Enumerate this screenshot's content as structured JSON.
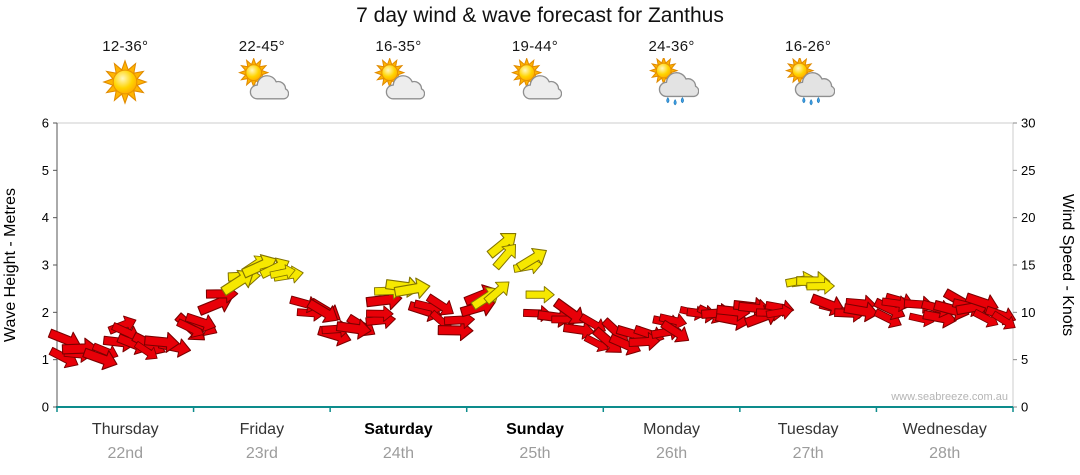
{
  "watermark": "www.seabreeze.com.au",
  "header": {
    "days": [
      {
        "temp": "12-36°",
        "icon": "sun"
      },
      {
        "temp": "22-45°",
        "icon": "sun-cloud"
      },
      {
        "temp": "16-35°",
        "icon": "sun-cloud"
      },
      {
        "temp": "19-44°",
        "icon": "sun-cloud"
      },
      {
        "temp": "24-36°",
        "icon": "sun-cloud-rain"
      },
      {
        "temp": "16-26°",
        "icon": "sun-cloud-rain"
      }
    ]
  },
  "chart_data": {
    "type": "scatter",
    "subtype": "wind-arrow-forecast",
    "title": "7 day wind & wave forecast for Zanthus",
    "ylabel_left": "Wave Height - Metres",
    "ylabel_right": "Wind Speed - Knots",
    "ylim_left": [
      0,
      6
    ],
    "ylim_right": [
      0,
      30
    ],
    "yticks_left": [
      0,
      1,
      2,
      3,
      4,
      5,
      6
    ],
    "yticks_right": [
      0,
      5,
      10,
      15,
      20,
      25,
      30
    ],
    "grid": false,
    "days": [
      {
        "name": "Thursday",
        "date": "22nd",
        "bold": false
      },
      {
        "name": "Friday",
        "date": "23rd",
        "bold": false
      },
      {
        "name": "Saturday",
        "date": "24th",
        "bold": true
      },
      {
        "name": "Sunday",
        "date": "25th",
        "bold": true
      },
      {
        "name": "Monday",
        "date": "26th",
        "bold": false
      },
      {
        "name": "Tuesday",
        "date": "27th",
        "bold": false
      },
      {
        "name": "Wednesday",
        "date": "28th",
        "bold": false
      }
    ],
    "arrow_style": {
      "moderate_fill": "#E80008",
      "moderate_stroke": "#7A0000",
      "strong_fill": "#F6E800",
      "strong_stroke": "#837400",
      "strong_threshold_knots": 12,
      "bottom_axis_color": "#0D8C8C"
    },
    "series": {
      "name": "Wind speed (knots) with direction arrows",
      "t_days": [
        0.06,
        0.19,
        0.31,
        0.44,
        0.56,
        0.69,
        0.81,
        0.94,
        1.06,
        1.19,
        1.31,
        1.44,
        1.56,
        1.69,
        1.81,
        1.94,
        2.06,
        2.19,
        2.31,
        2.44,
        2.56,
        2.69,
        2.81,
        2.94,
        3.06,
        3.19,
        3.31,
        3.44,
        3.56,
        3.69,
        3.81,
        3.94,
        4.06,
        4.19,
        4.31,
        4.44,
        4.56,
        4.69,
        4.81,
        4.94,
        5.06,
        5.19,
        5.31,
        5.44,
        5.56,
        5.69,
        5.81,
        5.94,
        6.06,
        6.19,
        6.31,
        6.44,
        6.56,
        6.69,
        6.81,
        6.94
      ],
      "knots": [
        7,
        6.5,
        6,
        7,
        7.5,
        6.5,
        6,
        7.5,
        8.5,
        10.5,
        13,
        14.5,
        15,
        13.5,
        11.5,
        10,
        9,
        8.5,
        9.5,
        12,
        12.5,
        10.5,
        9.5,
        9,
        10,
        13,
        15.5,
        14.5,
        11.5,
        9.5,
        8.5,
        8,
        7.5,
        7,
        7.5,
        8,
        8.5,
        9,
        9.5,
        10,
        10.5,
        11,
        11.5,
        13,
        12.5,
        11,
        10.5,
        10.5,
        10,
        10.5,
        10,
        10.5,
        10,
        10.5,
        10,
        9.5
      ],
      "dir_deg": [
        110,
        95,
        125,
        80,
        105,
        130,
        90,
        115,
        100,
        85,
        70,
        60,
        75,
        90,
        110,
        120,
        95,
        105,
        85,
        75,
        90,
        100,
        115,
        95,
        80,
        65,
        55,
        70,
        85,
        100,
        110,
        105,
        120,
        110,
        100,
        95,
        105,
        115,
        100,
        95,
        90,
        80,
        95,
        75,
        85,
        95,
        105,
        90,
        100,
        95,
        110,
        90,
        105,
        95,
        100,
        110
      ]
    }
  }
}
